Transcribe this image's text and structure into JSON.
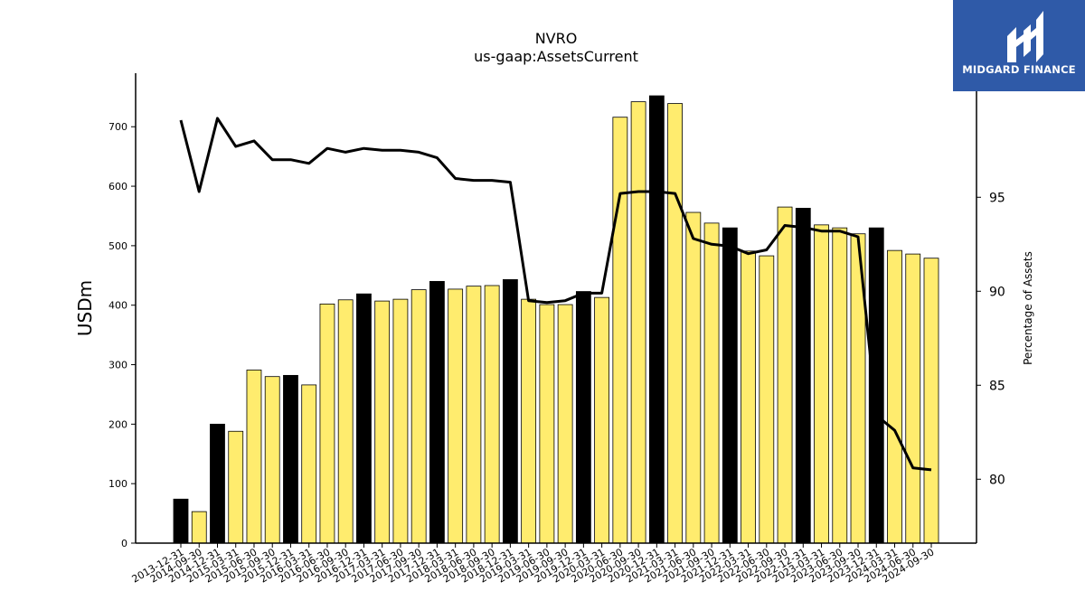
{
  "brand": {
    "logo_text": "MIDGARD FINANCE",
    "logo_color": "#2f5aa8"
  },
  "chart_data": {
    "type": "bar",
    "title": "NVRO",
    "subtitle": "us-gaap:AssetsCurrent",
    "ylabel": "USDm",
    "y2label": "Percentage of Assets",
    "ylim": [
      0,
      790
    ],
    "y2lim": [
      76.6,
      101.6
    ],
    "yticks": [
      0,
      100,
      200,
      300,
      400,
      500,
      600,
      700
    ],
    "y2ticks": [
      80,
      85,
      90,
      95
    ],
    "grid": false,
    "colors": {
      "annual_bar": "#000000",
      "quarterly_bar": "#ffec6e",
      "line": "#000000"
    },
    "categories": [
      "2013-12-31",
      "2014-09-30",
      "2014-12-31",
      "2015-03-31",
      "2015-06-30",
      "2015-09-30",
      "2015-12-31",
      "2016-03-31",
      "2016-06-30",
      "2016-09-30",
      "2016-12-31",
      "2017-03-31",
      "2017-06-30",
      "2017-09-30",
      "2017-12-31",
      "2018-03-31",
      "2018-06-30",
      "2018-09-30",
      "2018-12-31",
      "2019-03-31",
      "2019-06-30",
      "2019-09-30",
      "2019-12-31",
      "2020-03-31",
      "2020-06-30",
      "2020-09-30",
      "2020-12-31",
      "2021-03-31",
      "2021-06-30",
      "2021-09-30",
      "2021-12-31",
      "2022-03-31",
      "2022-06-30",
      "2022-09-30",
      "2022-12-31",
      "2023-03-31",
      "2023-06-30",
      "2023-09-30",
      "2023-12-31",
      "2024-03-31",
      "2024-06-30",
      "2024-09-30"
    ],
    "series": [
      {
        "kind": "bar",
        "values": [
          74,
          53,
          200,
          188,
          291,
          280,
          282,
          266,
          402,
          409,
          419,
          407,
          410,
          426,
          440,
          427,
          432,
          433,
          443,
          410,
          401,
          401,
          423,
          413,
          716,
          742,
          752,
          739,
          556,
          538,
          530,
          491,
          483,
          565,
          563,
          535,
          530,
          520,
          530,
          492,
          486,
          479
        ],
        "annual": [
          true,
          false,
          true,
          false,
          false,
          false,
          true,
          false,
          false,
          false,
          true,
          false,
          false,
          false,
          true,
          false,
          false,
          false,
          true,
          false,
          false,
          false,
          true,
          false,
          false,
          false,
          true,
          false,
          false,
          false,
          true,
          false,
          false,
          false,
          true,
          false,
          false,
          false,
          true,
          false,
          false,
          false
        ]
      },
      {
        "kind": "line",
        "axis": "right",
        "values": [
          99.1,
          95.3,
          99.2,
          97.7,
          98.0,
          97.0,
          97.0,
          96.8,
          97.6,
          97.4,
          97.6,
          97.5,
          97.5,
          97.4,
          97.1,
          96.0,
          95.9,
          95.9,
          95.8,
          89.5,
          89.4,
          89.5,
          89.9,
          89.9,
          95.2,
          95.3,
          95.3,
          95.2,
          92.8,
          92.5,
          92.4,
          92.0,
          92.2,
          93.5,
          93.4,
          93.2,
          93.2,
          92.9,
          83.4,
          82.6,
          80.6,
          80.5
        ]
      }
    ]
  }
}
